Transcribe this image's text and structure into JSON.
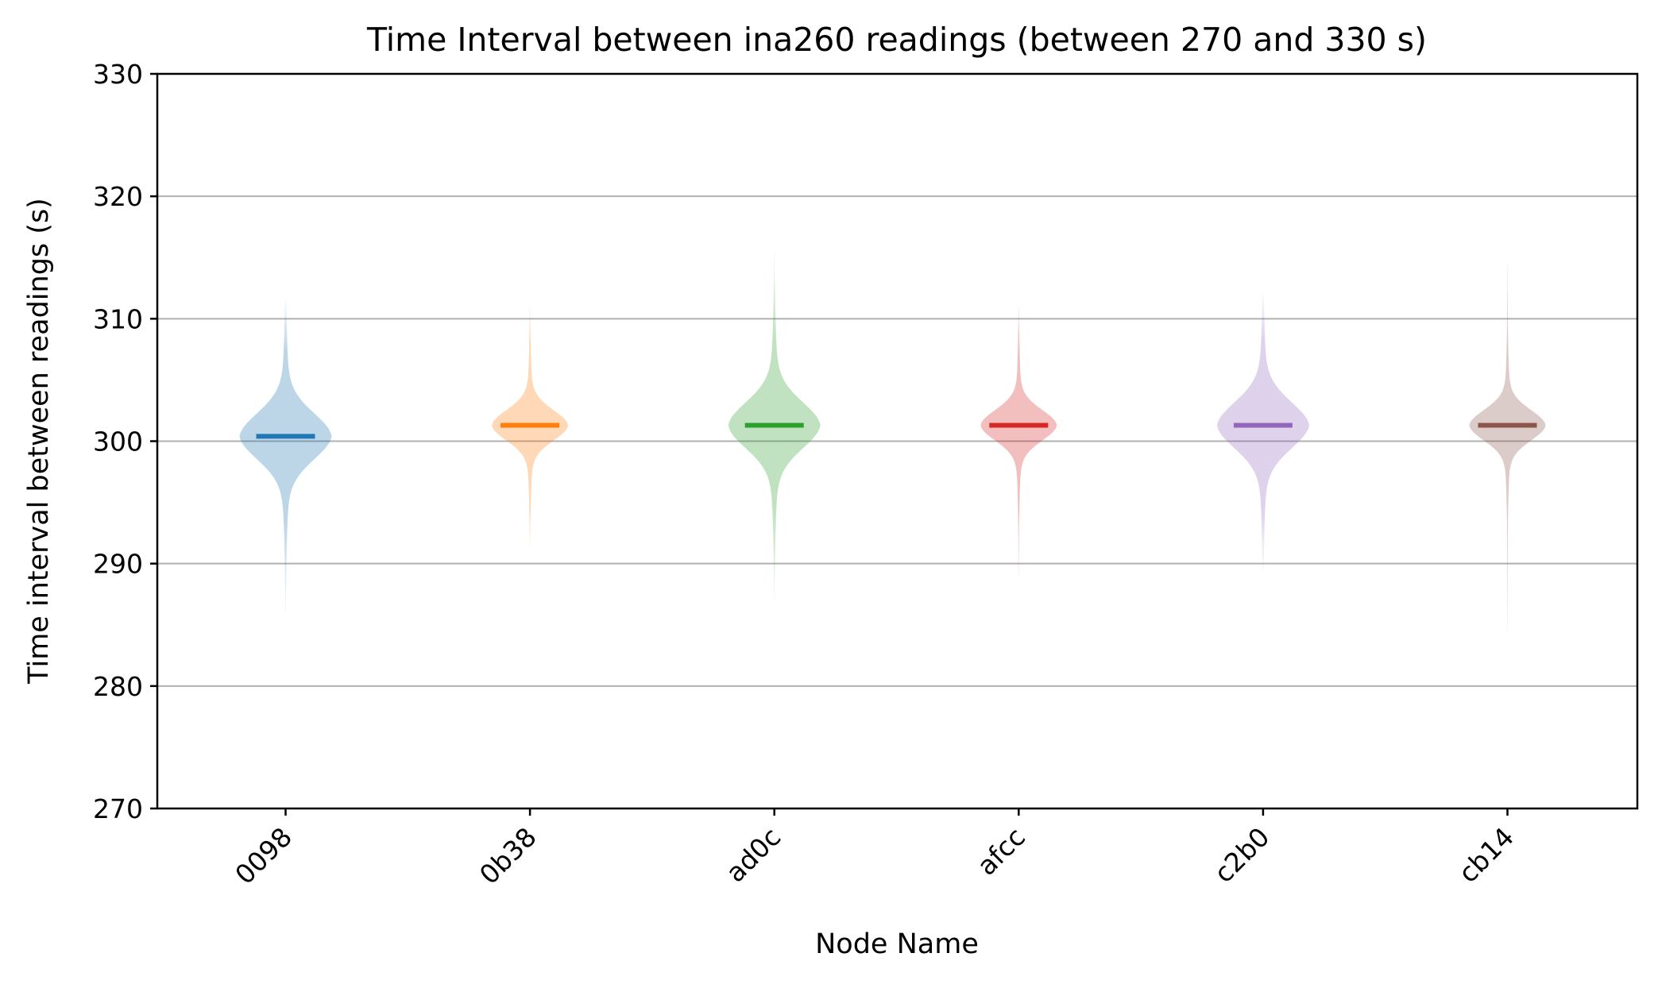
{
  "chart_data": {
    "type": "violin",
    "title": "Time Interval between ina260 readings (between 270 and 330 s)",
    "xlabel": "Node Name",
    "ylabel": "Time interval between readings (s)",
    "ylim": [
      270,
      330
    ],
    "yticks": [
      270,
      280,
      290,
      300,
      310,
      320,
      330
    ],
    "grid": "y",
    "categories": [
      "0098",
      "0b38",
      "ad0c",
      "afcc",
      "c2b0",
      "cb14"
    ],
    "colors": [
      "#1f77b4",
      "#ff7f0e",
      "#2ca02c",
      "#d62728",
      "#9467bd",
      "#8c564b"
    ],
    "series": [
      {
        "median": 300.4,
        "min": 286.0,
        "max": 311.5,
        "spread": "wide"
      },
      {
        "median": 301.3,
        "min": 291.5,
        "max": 311.0,
        "spread": "narrow"
      },
      {
        "median": 301.3,
        "min": 287.0,
        "max": 315.5,
        "spread": "wide"
      },
      {
        "median": 301.3,
        "min": 289.0,
        "max": 311.0,
        "spread": "narrow"
      },
      {
        "median": 301.3,
        "min": 289.5,
        "max": 312.0,
        "spread": "wide"
      },
      {
        "median": 301.3,
        "min": 284.5,
        "max": 314.5,
        "spread": "narrow"
      }
    ]
  }
}
